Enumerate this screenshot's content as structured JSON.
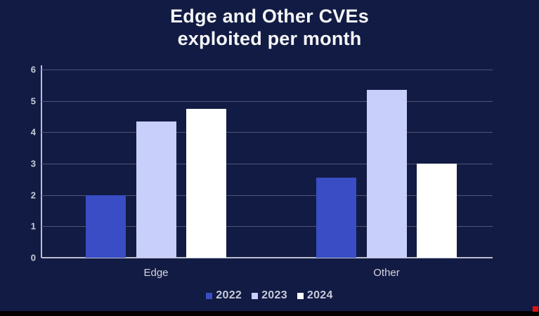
{
  "title": {
    "line1": "Edge and Other CVEs",
    "line2": "exploited per month"
  },
  "chart_data": {
    "type": "bar",
    "title": "Edge and Other CVEs exploited per month",
    "categories": [
      "Edge",
      "Other"
    ],
    "series": [
      {
        "name": "2022",
        "color": "#3a4dc4",
        "values": [
          2.0,
          2.55
        ]
      },
      {
        "name": "2023",
        "color": "#c8cffa",
        "values": [
          4.35,
          5.35
        ]
      },
      {
        "name": "2024",
        "color": "#ffffff",
        "values": [
          4.75,
          3.0
        ]
      }
    ],
    "xlabel": "",
    "ylabel": "",
    "ylim": [
      0,
      6
    ],
    "yticks": [
      0,
      1,
      2,
      3,
      4,
      5,
      6
    ],
    "grid": true,
    "legend_position": "bottom"
  },
  "colors": {
    "background": "#121b43",
    "gridline": "#4d5475",
    "axis": "#b9bfd0",
    "tick_text": "#c6cbda",
    "title_text": "#f5f6f8",
    "bottom_strip": "#010101",
    "record_dot": "#dd1111"
  }
}
